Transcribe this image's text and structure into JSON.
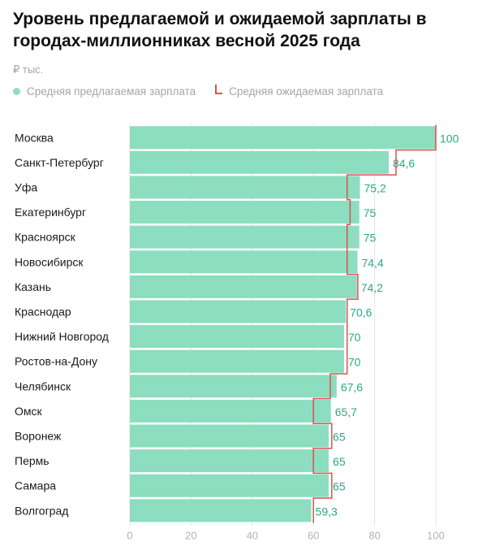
{
  "title": "Уровень предлагаемой и ожидаемой зарплаты в городах-миллионниках весной 2025 года",
  "unit": "₽ тыс.",
  "legend": {
    "offered": "Средняя предлагаемая зарплата",
    "expected": "Средняя ожидаемая зарплата"
  },
  "colors": {
    "bar": "#8dddc0",
    "expected_line": "#d9534f",
    "value_label": "#2ea884",
    "grid": "#e6e6e6"
  },
  "chart_data": {
    "type": "bar",
    "orientation": "horizontal",
    "categories": [
      "Москва",
      "Санкт-Петербург",
      "Уфа",
      "Екатеринбург",
      "Красноярск",
      "Новосибирск",
      "Казань",
      "Краснодар",
      "Нижний Новгород",
      "Ростов-на-Дону",
      "Челябинск",
      "Омск",
      "Воронеж",
      "Пермь",
      "Самара",
      "Волгоград"
    ],
    "series": [
      {
        "name": "Средняя предлагаемая зарплата",
        "values": [
          100,
          84.6,
          75.2,
          75,
          75,
          74.4,
          74.2,
          70.6,
          70,
          70,
          67.6,
          65.7,
          65,
          65,
          65,
          59.3
        ],
        "labels": [
          "100",
          "84,6",
          "75,2",
          "75",
          "75",
          "74,4",
          "74,2",
          "70,6",
          "70",
          "70",
          "67,6",
          "65,7",
          "65",
          "65",
          "65",
          "59,3"
        ]
      },
      {
        "name": "Средняя ожидаемая зарплата",
        "values": [
          100,
          87,
          71,
          72,
          71,
          71,
          74.5,
          71,
          71,
          71,
          65.5,
          60,
          66,
          60,
          66,
          60
        ]
      }
    ],
    "xlim": [
      0,
      100
    ],
    "xticks": [
      0,
      20,
      40,
      60,
      80,
      100
    ],
    "grid": true
  }
}
